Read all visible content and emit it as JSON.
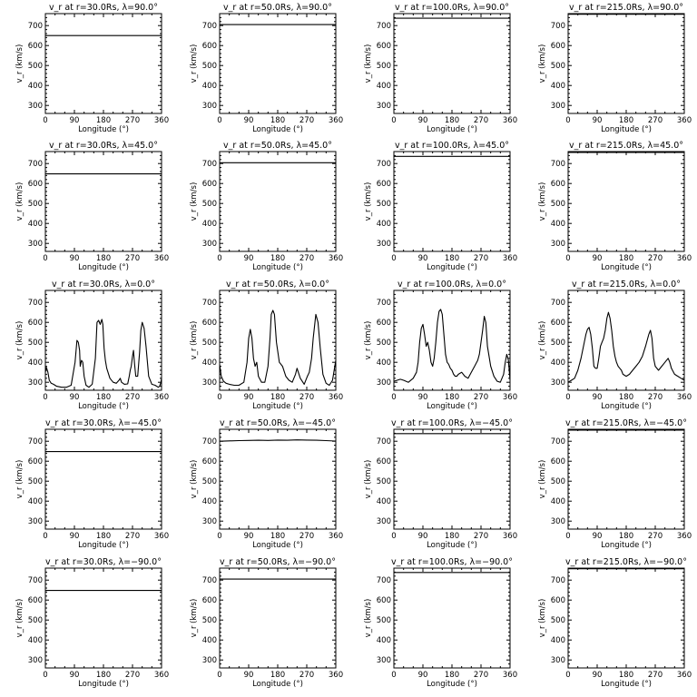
{
  "chart_data": [
    {
      "type": "line",
      "title": "v_r at r=30.0Rs, λ=90.0°",
      "xlabel": "Longitude (°)",
      "ylabel": "v_r (km/s)",
      "xlim": [
        0,
        360
      ],
      "ylim": [
        260,
        760
      ],
      "xticks": [
        0,
        90,
        180,
        270,
        360
      ],
      "yticks": [
        300,
        400,
        500,
        600,
        700
      ],
      "series": [
        {
          "x": [
            0,
            360
          ],
          "y": [
            650,
            650
          ]
        }
      ]
    },
    {
      "type": "line",
      "title": "v_r at r=50.0Rs, λ=90.0°",
      "xlabel": "Longitude (°)",
      "ylabel": "v_r (km/s)",
      "xlim": [
        0,
        360
      ],
      "ylim": [
        260,
        760
      ],
      "xticks": [
        0,
        90,
        180,
        270,
        360
      ],
      "yticks": [
        300,
        400,
        500,
        600,
        700
      ],
      "series": [
        {
          "x": [
            0,
            360
          ],
          "y": [
            705,
            705
          ]
        }
      ]
    },
    {
      "type": "line",
      "title": "v_r at r=100.0Rs, λ=90.0°",
      "xlabel": "Longitude (°)",
      "ylabel": "v_r (km/s)",
      "xlim": [
        0,
        360
      ],
      "ylim": [
        260,
        760
      ],
      "xticks": [
        0,
        90,
        180,
        270,
        360
      ],
      "yticks": [
        300,
        400,
        500,
        600,
        700
      ],
      "series": [
        {
          "x": [
            0,
            360
          ],
          "y": [
            737,
            737
          ]
        }
      ]
    },
    {
      "type": "line",
      "title": "v_r at r=215.0Rs, λ=90.0°",
      "xlabel": "Longitude (°)",
      "ylabel": "v_r (km/s)",
      "xlim": [
        0,
        360
      ],
      "ylim": [
        260,
        760
      ],
      "xticks": [
        0,
        90,
        180,
        270,
        360
      ],
      "yticks": [
        300,
        400,
        500,
        600,
        700
      ],
      "series": [
        {
          "x": [
            0,
            360
          ],
          "y": [
            757,
            757
          ]
        }
      ]
    },
    {
      "type": "line",
      "title": "v_r at r=30.0Rs, λ=45.0°",
      "xlabel": "Longitude (°)",
      "ylabel": "v_r (km/s)",
      "xlim": [
        0,
        360
      ],
      "ylim": [
        260,
        760
      ],
      "xticks": [
        0,
        90,
        180,
        270,
        360
      ],
      "yticks": [
        300,
        400,
        500,
        600,
        700
      ],
      "series": [
        {
          "x": [
            0,
            360
          ],
          "y": [
            648,
            648
          ]
        }
      ]
    },
    {
      "type": "line",
      "title": "v_r at r=50.0Rs, λ=45.0°",
      "xlabel": "Longitude (°)",
      "ylabel": "v_r (km/s)",
      "xlim": [
        0,
        360
      ],
      "ylim": [
        260,
        760
      ],
      "xticks": [
        0,
        90,
        180,
        270,
        360
      ],
      "yticks": [
        300,
        400,
        500,
        600,
        700
      ],
      "series": [
        {
          "x": [
            0,
            360
          ],
          "y": [
            704,
            704
          ]
        }
      ]
    },
    {
      "type": "line",
      "title": "v_r at r=100.0Rs, λ=45.0°",
      "xlabel": "Longitude (°)",
      "ylabel": "v_r (km/s)",
      "xlim": [
        0,
        360
      ],
      "ylim": [
        260,
        760
      ],
      "xticks": [
        0,
        90,
        180,
        270,
        360
      ],
      "yticks": [
        300,
        400,
        500,
        600,
        700
      ],
      "series": [
        {
          "x": [
            0,
            360
          ],
          "y": [
            736,
            736
          ]
        }
      ]
    },
    {
      "type": "line",
      "title": "v_r at r=215.0Rs, λ=45.0°",
      "xlabel": "Longitude (°)",
      "ylabel": "v_r (km/s)",
      "xlim": [
        0,
        360
      ],
      "ylim": [
        260,
        760
      ],
      "xticks": [
        0,
        90,
        180,
        270,
        360
      ],
      "yticks": [
        300,
        400,
        500,
        600,
        700
      ],
      "series": [
        {
          "x": [
            0,
            360
          ],
          "y": [
            756,
            756
          ]
        }
      ]
    },
    {
      "type": "line",
      "title": "v_r at r=30.0Rs, λ=0.0°",
      "xlabel": "Longitude (°)",
      "ylabel": "v_r (km/s)",
      "xlim": [
        0,
        360
      ],
      "ylim": [
        260,
        760
      ],
      "xticks": [
        0,
        90,
        180,
        270,
        360
      ],
      "yticks": [
        300,
        400,
        500,
        600,
        700
      ],
      "series": [
        {
          "x": [
            0,
            3,
            8,
            12,
            18,
            25,
            35,
            50,
            65,
            80,
            92,
            98,
            102,
            106,
            108,
            112,
            116,
            120,
            126,
            135,
            145,
            155,
            160,
            165,
            170,
            175,
            178,
            182,
            186,
            190,
            200,
            210,
            220,
            228,
            232,
            236,
            245,
            255,
            260,
            263,
            266,
            270,
            273,
            276,
            280,
            286,
            292,
            296,
            300,
            306,
            312,
            320,
            330,
            340,
            350,
            354,
            358,
            360
          ],
          "y": [
            350,
            375,
            350,
            310,
            295,
            290,
            280,
            275,
            275,
            285,
            400,
            510,
            500,
            460,
            380,
            410,
            400,
            330,
            285,
            275,
            290,
            420,
            600,
            610,
            590,
            615,
            590,
            470,
            410,
            370,
            320,
            300,
            295,
            310,
            320,
            300,
            290,
            292,
            330,
            360,
            380,
            430,
            460,
            400,
            330,
            330,
            450,
            560,
            600,
            570,
            480,
            330,
            290,
            285,
            275,
            280,
            300,
            320
          ]
        }
      ]
    },
    {
      "type": "line",
      "title": "v_r at r=50.0Rs, λ=0.0°",
      "xlabel": "Longitude (°)",
      "ylabel": "v_r (km/s)",
      "xlim": [
        0,
        360
      ],
      "ylim": [
        260,
        760
      ],
      "xticks": [
        0,
        90,
        180,
        270,
        360
      ],
      "yticks": [
        300,
        400,
        500,
        600,
        700
      ],
      "series": [
        {
          "x": [
            0,
            5,
            12,
            20,
            30,
            45,
            60,
            75,
            85,
            90,
            95,
            100,
            105,
            110,
            115,
            120,
            130,
            140,
            150,
            156,
            160,
            165,
            170,
            176,
            185,
            195,
            205,
            215,
            225,
            235,
            240,
            250,
            262,
            272,
            278,
            285,
            290,
            298,
            305,
            312,
            320,
            330,
            340,
            350,
            355,
            360
          ],
          "y": [
            390,
            330,
            305,
            295,
            290,
            285,
            285,
            300,
            400,
            520,
            565,
            520,
            420,
            380,
            400,
            330,
            300,
            300,
            380,
            520,
            640,
            660,
            640,
            500,
            400,
            380,
            330,
            310,
            300,
            340,
            370,
            320,
            290,
            330,
            350,
            420,
            520,
            640,
            600,
            470,
            340,
            295,
            285,
            310,
            360,
            410
          ]
        }
      ]
    },
    {
      "type": "line",
      "title": "v_r at r=100.0Rs, λ=0.0°",
      "xlabel": "Longitude (°)",
      "ylabel": "v_r (km/s)",
      "xlim": [
        0,
        360
      ],
      "ylim": [
        260,
        760
      ],
      "xticks": [
        0,
        90,
        180,
        270,
        360
      ],
      "yticks": [
        300,
        400,
        500,
        600,
        700
      ],
      "series": [
        {
          "x": [
            0,
            10,
            20,
            30,
            45,
            60,
            70,
            75,
            80,
            85,
            90,
            95,
            100,
            105,
            110,
            115,
            120,
            125,
            130,
            135,
            140,
            145,
            150,
            155,
            160,
            165,
            170,
            175,
            180,
            185,
            190,
            195,
            200,
            210,
            220,
            230,
            240,
            250,
            260,
            265,
            270,
            275,
            280,
            285,
            290,
            300,
            310,
            320,
            330,
            340,
            345,
            350,
            355,
            360
          ],
          "y": [
            305,
            310,
            315,
            310,
            300,
            320,
            350,
            400,
            500,
            570,
            590,
            540,
            480,
            500,
            460,
            400,
            380,
            420,
            500,
            600,
            655,
            665,
            640,
            540,
            440,
            400,
            390,
            370,
            360,
            340,
            330,
            330,
            340,
            350,
            330,
            320,
            350,
            380,
            410,
            440,
            500,
            560,
            630,
            600,
            480,
            380,
            330,
            305,
            300,
            340,
            400,
            440,
            410,
            310
          ]
        }
      ]
    },
    {
      "type": "line",
      "title": "v_r at r=215.0Rs, λ=0.0°",
      "xlabel": "Longitude (°)",
      "ylabel": "v_r (km/s)",
      "xlim": [
        0,
        360
      ],
      "ylim": [
        260,
        760
      ],
      "xticks": [
        0,
        90,
        180,
        270,
        360
      ],
      "yticks": [
        300,
        400,
        500,
        600,
        700
      ],
      "series": [
        {
          "x": [
            0,
            10,
            20,
            30,
            40,
            50,
            55,
            60,
            65,
            70,
            75,
            80,
            85,
            90,
            95,
            100,
            105,
            110,
            115,
            120,
            125,
            130,
            135,
            140,
            145,
            150,
            155,
            160,
            165,
            170,
            180,
            190,
            200,
            210,
            220,
            230,
            240,
            245,
            250,
            255,
            260,
            265,
            270,
            280,
            290,
            300,
            310,
            315,
            320,
            330,
            340,
            350,
            360
          ],
          "y": [
            300,
            310,
            320,
            360,
            420,
            500,
            540,
            565,
            575,
            540,
            470,
            380,
            370,
            370,
            420,
            480,
            500,
            520,
            560,
            620,
            650,
            620,
            560,
            480,
            430,
            400,
            380,
            370,
            360,
            340,
            330,
            340,
            360,
            380,
            400,
            430,
            480,
            510,
            540,
            560,
            520,
            420,
            380,
            360,
            380,
            400,
            420,
            400,
            370,
            340,
            330,
            320,
            310
          ]
        }
      ]
    },
    {
      "type": "line",
      "title": "v_r at r=30.0Rs, λ=−45.0°",
      "xlabel": "Longitude (°)",
      "ylabel": "v_r (km/s)",
      "xlim": [
        0,
        360
      ],
      "ylim": [
        260,
        760
      ],
      "xticks": [
        0,
        90,
        180,
        270,
        360
      ],
      "yticks": [
        300,
        400,
        500,
        600,
        700
      ],
      "series": [
        {
          "x": [
            0,
            360
          ],
          "y": [
            648,
            648
          ]
        }
      ]
    },
    {
      "type": "line",
      "title": "v_r at r=50.0Rs, λ=−45.0°",
      "xlabel": "Longitude (°)",
      "ylabel": "v_r (km/s)",
      "xlim": [
        0,
        360
      ],
      "ylim": [
        260,
        760
      ],
      "xticks": [
        0,
        90,
        180,
        270,
        360
      ],
      "yticks": [
        300,
        400,
        500,
        600,
        700
      ],
      "series": [
        {
          "x": [
            0,
            30,
            60,
            90,
            120,
            150,
            180,
            210,
            240,
            270,
            300,
            330,
            360
          ],
          "y": [
            700,
            702,
            703,
            704,
            705,
            704,
            706,
            705,
            707,
            706,
            705,
            703,
            701
          ]
        }
      ]
    },
    {
      "type": "line",
      "title": "v_r at r=100.0Rs, λ=−45.0°",
      "xlabel": "Longitude (°)",
      "ylabel": "v_r (km/s)",
      "xlim": [
        0,
        360
      ],
      "ylim": [
        260,
        760
      ],
      "xticks": [
        0,
        90,
        180,
        270,
        360
      ],
      "yticks": [
        300,
        400,
        500,
        600,
        700
      ],
      "series": [
        {
          "x": [
            0,
            360
          ],
          "y": [
            738,
            738
          ]
        }
      ]
    },
    {
      "type": "line",
      "title": "v_r at r=215.0Rs, λ=−45.0°",
      "xlabel": "Longitude (°)",
      "ylabel": "v_r (km/s)",
      "xlim": [
        0,
        360
      ],
      "ylim": [
        260,
        760
      ],
      "xticks": [
        0,
        90,
        180,
        270,
        360
      ],
      "yticks": [
        300,
        400,
        500,
        600,
        700
      ],
      "series": [
        {
          "x": [
            0,
            360
          ],
          "y": [
            756,
            756
          ]
        }
      ]
    },
    {
      "type": "line",
      "title": "v_r at r=30.0Rs, λ=−90.0°",
      "xlabel": "Longitude (°)",
      "ylabel": "v_r (km/s)",
      "xlim": [
        0,
        360
      ],
      "ylim": [
        260,
        760
      ],
      "xticks": [
        0,
        90,
        180,
        270,
        360
      ],
      "yticks": [
        300,
        400,
        500,
        600,
        700
      ],
      "series": [
        {
          "x": [
            0,
            360
          ],
          "y": [
            648,
            648
          ]
        }
      ]
    },
    {
      "type": "line",
      "title": "v_r at r=50.0Rs, λ=−90.0°",
      "xlabel": "Longitude (°)",
      "ylabel": "v_r (km/s)",
      "xlim": [
        0,
        360
      ],
      "ylim": [
        260,
        760
      ],
      "xticks": [
        0,
        90,
        180,
        270,
        360
      ],
      "yticks": [
        300,
        400,
        500,
        600,
        700
      ],
      "series": [
        {
          "x": [
            0,
            360
          ],
          "y": [
            705,
            705
          ]
        }
      ]
    },
    {
      "type": "line",
      "title": "v_r at r=100.0Rs, λ=−90.0°",
      "xlabel": "Longitude (°)",
      "ylabel": "v_r (km/s)",
      "xlim": [
        0,
        360
      ],
      "ylim": [
        260,
        760
      ],
      "xticks": [
        0,
        90,
        180,
        270,
        360
      ],
      "yticks": [
        300,
        400,
        500,
        600,
        700
      ],
      "series": [
        {
          "x": [
            0,
            360
          ],
          "y": [
            738,
            738
          ]
        }
      ]
    },
    {
      "type": "line",
      "title": "v_r at r=215.0Rs, λ=−90.0°",
      "xlabel": "Longitude (°)",
      "ylabel": "v_r (km/s)",
      "xlim": [
        0,
        360
      ],
      "ylim": [
        260,
        760
      ],
      "xticks": [
        0,
        90,
        180,
        270,
        360
      ],
      "yticks": [
        300,
        400,
        500,
        600,
        700
      ],
      "series": [
        {
          "x": [
            0,
            360
          ],
          "y": [
            757,
            757
          ]
        }
      ]
    }
  ]
}
